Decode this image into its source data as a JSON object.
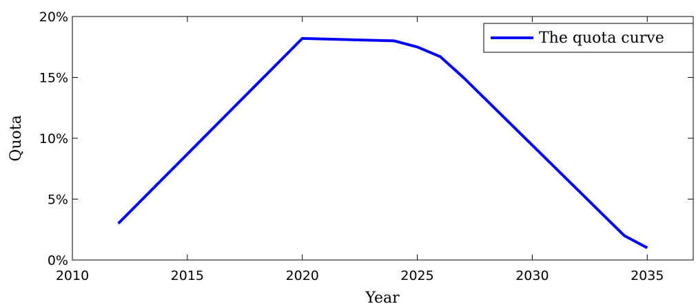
{
  "chart_data": {
    "type": "line",
    "title": "",
    "xlabel": "Year",
    "ylabel": "Quota",
    "xlim": [
      2010,
      2037
    ],
    "ylim": [
      0,
      20
    ],
    "xticks": [
      2010,
      2015,
      2020,
      2025,
      2030,
      2035
    ],
    "xtick_labels": [
      "2010",
      "2015",
      "2020",
      "2025",
      "2030",
      "2035"
    ],
    "yticks": [
      0,
      5,
      10,
      15,
      20
    ],
    "ytick_labels": [
      "0%",
      "5%",
      "10%",
      "15%",
      "20%"
    ],
    "grid": false,
    "legend_position": "top-right",
    "series": [
      {
        "name": "The quota curve",
        "color": "#0000ff",
        "x": [
          2012,
          2020,
          2024,
          2025,
          2026,
          2027,
          2034,
          2035
        ],
        "y": [
          3.0,
          18.2,
          18.0,
          17.5,
          16.7,
          15.0,
          2.0,
          1.0
        ]
      }
    ]
  }
}
